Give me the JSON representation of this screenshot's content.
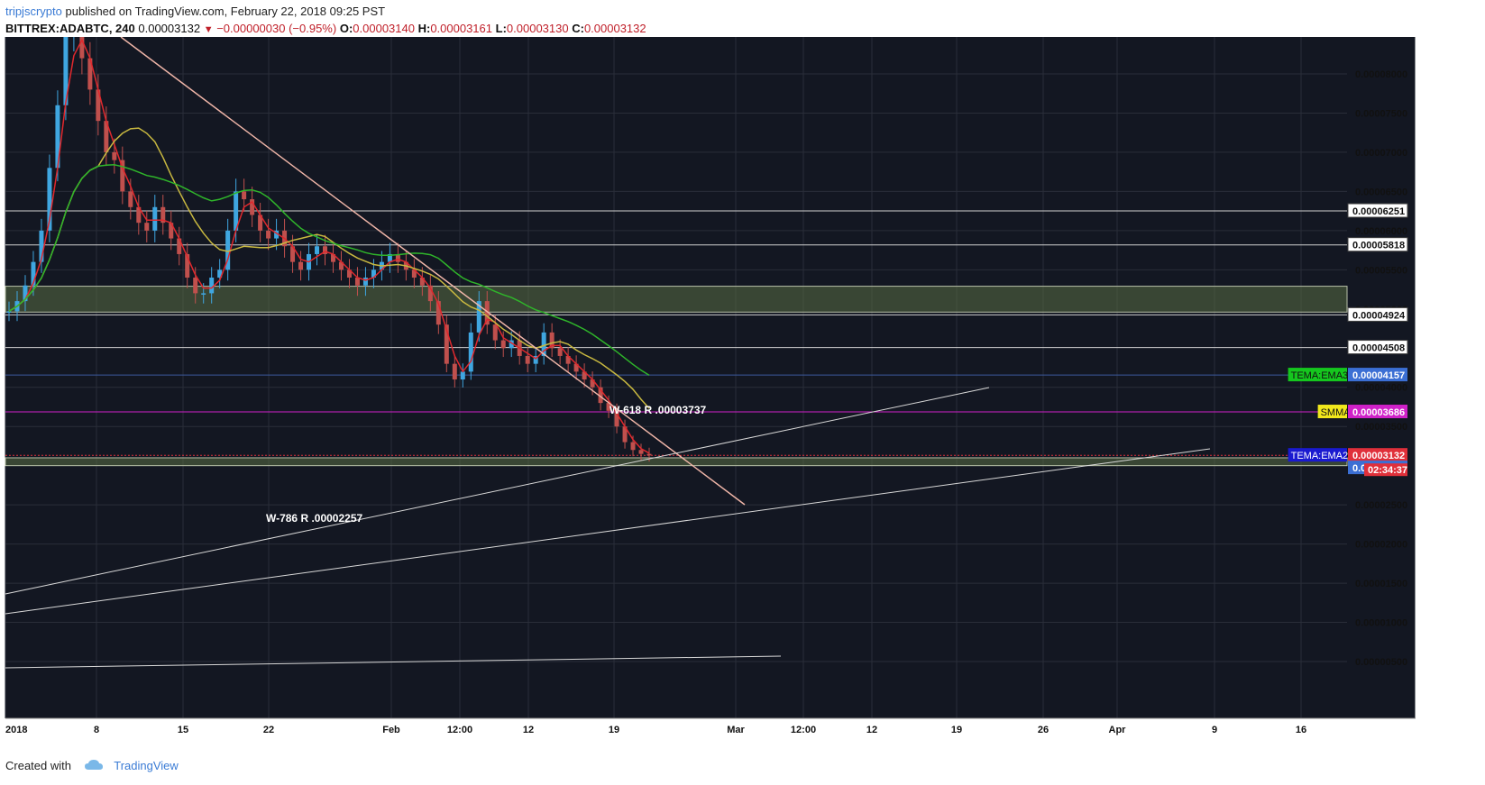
{
  "header": {
    "author": "tripjscrypto",
    "published": "published on TradingView.com, February 22, 2018 09:25 PST",
    "symbol": "BITTREX:ADABTC, 240",
    "last": "0.00003132",
    "change": "−0.00000030 (−0.95%)",
    "o_label": "O:",
    "o": "0.00003140",
    "h_label": "H:",
    "h": "0.00003161",
    "l_label": "L:",
    "l": "0.00003130",
    "c_label": "C:",
    "c": "0.00003132"
  },
  "footer": {
    "created_with": "Created with",
    "brand": "TradingView"
  },
  "colors": {
    "background": "#131722",
    "grid": "#2a2e39",
    "candle_up": "#3fa6e0",
    "candle_down": "#c0504d",
    "ema_red": "#e0282d",
    "ema_yellow": "#c8b840",
    "ema_green": "#2fb52a",
    "trendline_down": "#f0b6a8",
    "trendline": "#d8d8d8",
    "zone_fill": "#5a6e44",
    "smma": "#d021c9",
    "ema3_line": "#3d5a9c"
  },
  "chart_data": {
    "type": "candlestick",
    "symbol": "BITTREX:ADABTC",
    "timeframe": "240",
    "x_ticks": [
      "2018",
      "8",
      "15",
      "22",
      "Feb",
      "12:00",
      "12",
      "19",
      "Mar",
      "12:00",
      "12",
      "19",
      "26",
      "Apr",
      "9",
      "16"
    ],
    "y_ticks": [
      "0.00000500",
      "0.00001000",
      "0.00001500",
      "0.00002000",
      "0.00002500",
      "0.00003500",
      "0.00004000",
      "0.00005500",
      "0.00006000",
      "0.00006500",
      "0.00007000",
      "0.00007500",
      "0.00008000"
    ],
    "ylim": [
      0.0,
      8.7e-06
    ],
    "horizontal_levels": [
      {
        "value": 6.251e-05,
        "label": "0.00006251"
      },
      {
        "value": 5.818e-05,
        "label": "0.00005818"
      },
      {
        "value": 4.924e-05,
        "label": "0.00004924"
      },
      {
        "value": 4.508e-05,
        "label": "0.00004508"
      }
    ],
    "indicator_labels": [
      {
        "name": "TEMA:EMA3",
        "value": "0.00004157",
        "name_color": "#15c71e",
        "value_color": "#3b6fd4"
      },
      {
        "name": "SMMA",
        "value": "0.00003686",
        "name_color": "#f1e81c",
        "value_color": "#d021c9"
      },
      {
        "name": "TEMA:EMA2",
        "value": "0.00003132",
        "name_color": "#1a1ad0",
        "value_color": "#e0303a"
      },
      {
        "name": "",
        "value": "0.00002972",
        "name_color": "",
        "value_color": "#3b6fd4"
      }
    ],
    "countdown": "02:34:37",
    "overlapped_labels": [
      "0.00005000",
      "0.0"
    ],
    "annotations": [
      "W-618 R .00003737",
      "W-786 R .00002257"
    ],
    "candles_close": [
      4.97e-05,
      5.1e-05,
      5.3e-05,
      5.6e-05,
      6e-05,
      6.8e-05,
      7.6e-05,
      8.5e-05,
      8.6e-05,
      8.2e-05,
      7.8e-05,
      7.4e-05,
      7e-05,
      6.9e-05,
      6.5e-05,
      6.3e-05,
      6.1e-05,
      6e-05,
      6.3e-05,
      6.1e-05,
      5.9e-05,
      5.7e-05,
      5.4e-05,
      5.2e-05,
      5.2e-05,
      5.4e-05,
      5.5e-05,
      6e-05,
      6.5e-05,
      6.4e-05,
      6.2e-05,
      6e-05,
      5.9e-05,
      6e-05,
      5.8e-05,
      5.6e-05,
      5.5e-05,
      5.7e-05,
      5.8e-05,
      5.7e-05,
      5.6e-05,
      5.5e-05,
      5.4e-05,
      5.3e-05,
      5.4e-05,
      5.5e-05,
      5.6e-05,
      5.7e-05,
      5.6e-05,
      5.5e-05,
      5.4e-05,
      5.3e-05,
      5.1e-05,
      4.8e-05,
      4.3e-05,
      4.1e-05,
      4.2e-05,
      4.7e-05,
      5.1e-05,
      4.8e-05,
      4.6e-05,
      4.5e-05,
      4.6e-05,
      4.4e-05,
      4.3e-05,
      4.4e-05,
      4.7e-05,
      4.5e-05,
      4.4e-05,
      4.3e-05,
      4.2e-05,
      4.1e-05,
      4e-05,
      3.8e-05,
      3.7e-05,
      3.5e-05,
      3.3e-05,
      3.2e-05,
      3.15e-05,
      3.13e-05
    ]
  }
}
